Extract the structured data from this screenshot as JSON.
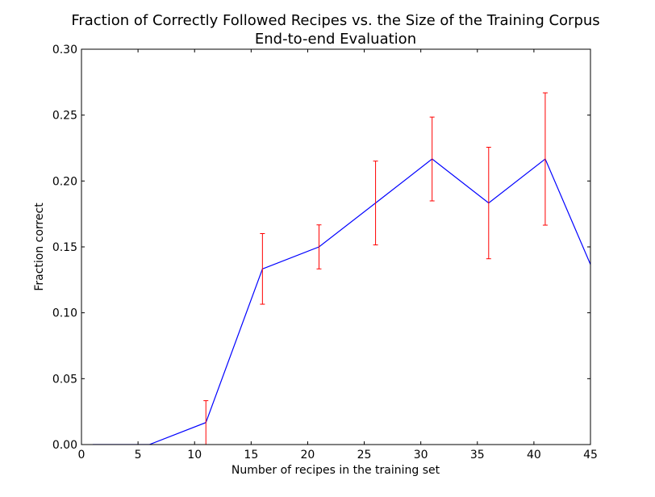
{
  "chart_data": {
    "type": "line",
    "title": "Fraction of Correctly Followed Recipes vs. the Size of the Training Corpus",
    "subtitle": "End-to-end Evaluation",
    "xlabel": "Number of recipes in the training set",
    "ylabel": "Fraction correct",
    "xlim": [
      0,
      45
    ],
    "ylim": [
      0,
      0.3
    ],
    "x_ticks": [
      0,
      5,
      10,
      15,
      20,
      25,
      30,
      35,
      40,
      45
    ],
    "x_tick_labels": [
      "0",
      "5",
      "10",
      "15",
      "20",
      "25",
      "30",
      "35",
      "40",
      "45"
    ],
    "y_ticks": [
      0,
      0.05,
      0.1,
      0.15,
      0.2,
      0.25,
      0.3
    ],
    "y_tick_labels": [
      "0.00",
      "0.05",
      "0.10",
      "0.15",
      "0.20",
      "0.25",
      "0.30"
    ],
    "grid": false,
    "line_color": "#0000ff",
    "error_color": "#ff0000",
    "series": [
      {
        "x": [
          1,
          6,
          11,
          16,
          21,
          26,
          31,
          36,
          41,
          46
        ],
        "values": [
          0.0,
          0.0,
          0.0167,
          0.1333,
          0.15,
          0.1833,
          0.2167,
          0.1833,
          0.2167,
          0.1167
        ],
        "error_low": [
          0.0,
          0.0,
          0.0,
          0.1065,
          0.1333,
          0.1515,
          0.1849,
          0.141,
          0.1665,
          null
        ],
        "error_high": [
          0.0,
          0.0,
          0.0333,
          0.1601,
          0.1667,
          0.2151,
          0.2485,
          0.2256,
          0.2669,
          null
        ]
      }
    ]
  }
}
